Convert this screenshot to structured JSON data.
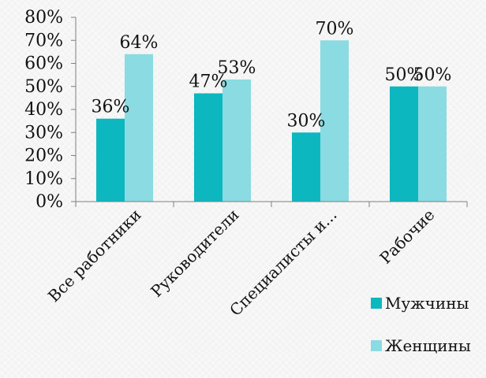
{
  "chart_data": {
    "type": "bar",
    "categories": [
      "Все работники",
      "Руководители",
      "Специалисты и...",
      "Рабочие"
    ],
    "series": [
      {
        "name": "Мужчины",
        "values": [
          36,
          47,
          30,
          50
        ],
        "labels": [
          "36%",
          "47%",
          "30%",
          "50%"
        ],
        "color": "#0cb7bf"
      },
      {
        "name": "Женщины",
        "values": [
          64,
          53,
          70,
          50
        ],
        "labels": [
          "64%",
          "53%",
          "70%",
          "50%"
        ],
        "color": "#8adbe2"
      }
    ],
    "ylim": [
      0,
      80
    ],
    "yticks": [
      {
        "value": 0,
        "label": "0%"
      },
      {
        "value": 10,
        "label": "10%"
      },
      {
        "value": 20,
        "label": "20%"
      },
      {
        "value": 30,
        "label": "30%"
      },
      {
        "value": 40,
        "label": "40%"
      },
      {
        "value": 50,
        "label": "50%"
      },
      {
        "value": 60,
        "label": "60%"
      },
      {
        "value": 70,
        "label": "70%"
      },
      {
        "value": 80,
        "label": "80%"
      }
    ],
    "title": "",
    "xlabel": "",
    "ylabel": "",
    "grid": false,
    "legend_position": "bottom-right"
  }
}
